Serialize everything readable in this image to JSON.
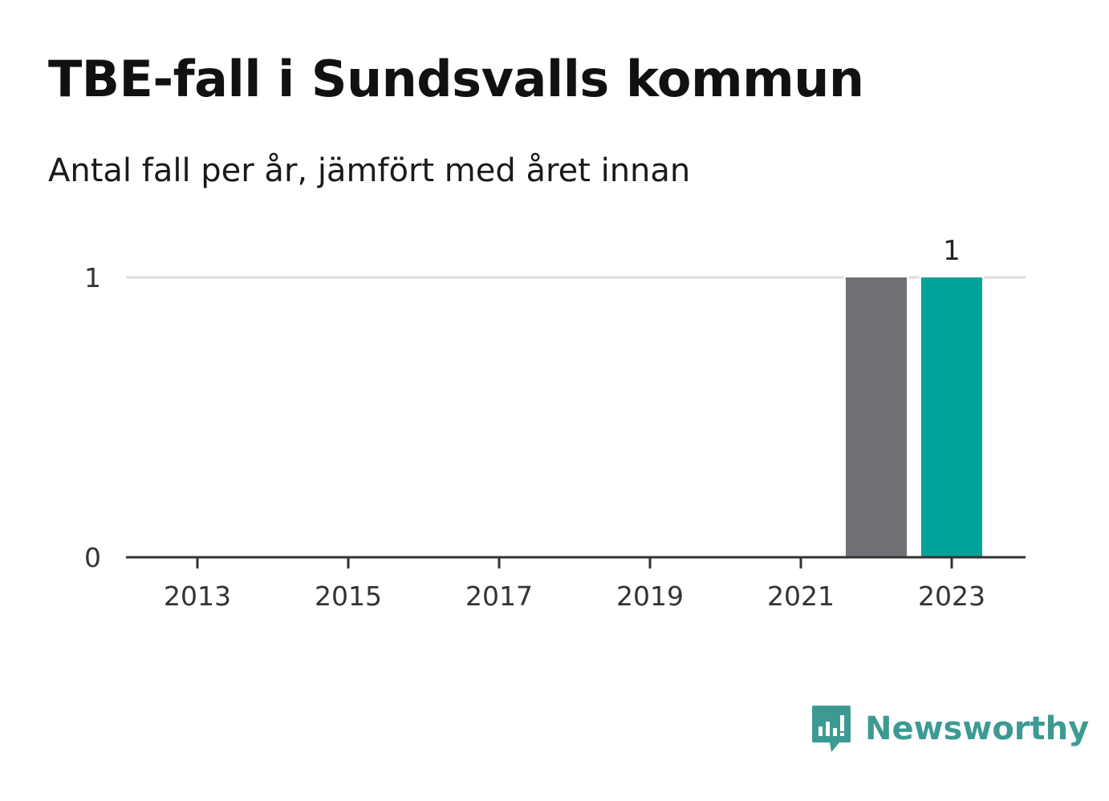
{
  "chart_data": {
    "type": "bar",
    "title": "TBE-fall i Sundsvalls kommun",
    "subtitle": "Antal fall per år, jämfört med året innan",
    "x": [
      2012,
      2013,
      2014,
      2015,
      2016,
      2017,
      2018,
      2019,
      2020,
      2021,
      2022,
      2023
    ],
    "values": [
      0,
      0,
      0,
      0,
      0,
      0,
      0,
      0,
      0,
      0,
      1,
      1
    ],
    "x_ticks": [
      2013,
      2015,
      2017,
      2019,
      2021,
      2023
    ],
    "y_ticks": [
      0,
      1
    ],
    "ylim": [
      0,
      1
    ],
    "grid": true,
    "highlight_year": 2023,
    "value_labels": [
      {
        "x": 2023,
        "text": "1"
      }
    ],
    "colors": {
      "bar": "#717076",
      "highlight": "#00a398",
      "grid": "#dddddd",
      "axis": "#333333"
    }
  },
  "brand": {
    "name": "Newsworthy",
    "color": "#3d9a93",
    "icon": "chart-speech-bubble-icon"
  }
}
